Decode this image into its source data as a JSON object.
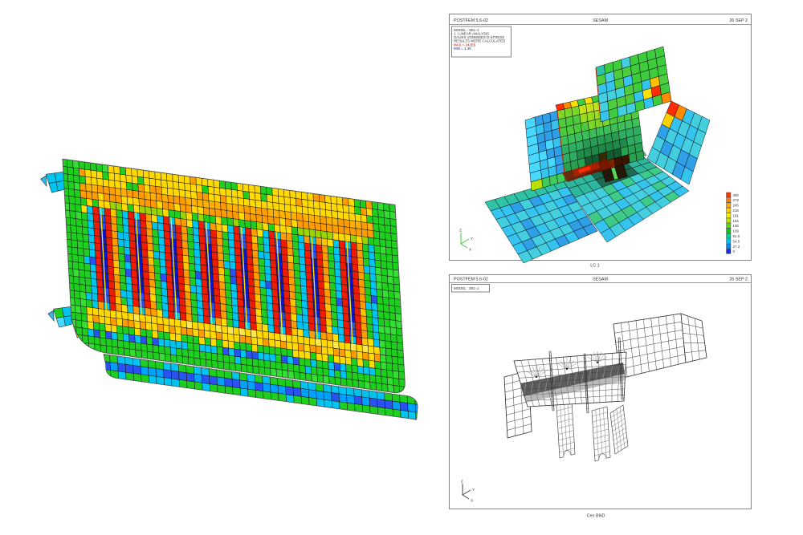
{
  "window": {
    "background": "#ffffff"
  },
  "panels": {
    "stress_plot": {
      "header": {
        "app": "POSTFEM 5.6-02",
        "center": "SESAM",
        "date": "26 SEP 2"
      },
      "info_box": {
        "line1": "MODEL : SEL-1",
        "line2": "1 : LINEAR ANALYSIS",
        "line3": "GAUSS VONMISES D-STRESS",
        "line4": "RESULTS WERE CALCULATED",
        "max": "MAX = 242E6",
        "min": "MIN = 1.39",
        "max_color": "#cc0000",
        "min_color": "#1a1acc"
      },
      "caption": "LC 1",
      "axis_triad": [
        "Z",
        "Y",
        "X"
      ],
      "legend": {
        "values": [
          "300",
          "273",
          "245",
          "218",
          "191",
          "164",
          "136",
          "109",
          "81.8",
          "54.5",
          "27.3",
          "0"
        ],
        "colors": [
          "#f43b00",
          "#ff7d00",
          "#ffa800",
          "#ffd300",
          "#f2ee00",
          "#b8e800",
          "#62d800",
          "#0ac80a",
          "#00d2a0",
          "#00c3f0",
          "#0091f0",
          "#1630e0"
        ]
      }
    },
    "wireframe_plot": {
      "header": {
        "app": "POSTFEM 5.6-02",
        "center": "SESAM",
        "date": "26 SEP 2"
      },
      "info_box": {
        "line1": "MODEL : SEL-1"
      },
      "caption": "Cen BND",
      "axis_triad": [
        "Z",
        "Y",
        "X"
      ]
    }
  },
  "palette": {
    "triad_green": "#3ecb3e",
    "triad_dark": "#444444",
    "left_model": {
      "green": "#1fcf1f",
      "green2": "#35dd35",
      "yellow": "#ffd900",
      "yellow2": "#ffe84a",
      "orange": "#ff9d00",
      "amber": "#ffb000",
      "red": "#ee1c00",
      "blue": "#2a52f0",
      "darkblue": "#0a18cf",
      "cyan": "#00c4f0",
      "ltcyan": "#49d8ff",
      "yellowgreen": "#9ad500",
      "stiffener": "#ffe000"
    },
    "stress_mesh": {
      "cyan": "#43cfe0",
      "cyan2": "#35c3ef",
      "ltblue": "#2f9fe8",
      "teal": "#2fc3a6",
      "green": "#3ecb3e",
      "green2": "#4ecb3e",
      "ygreen": "#9ade22",
      "hot_red": "#ff2d00",
      "hot_orange": "#ff8c00",
      "hot_yellow": "#ffe000",
      "burn": "#7a1400"
    },
    "wire_stroke": "#4a4a4a"
  }
}
